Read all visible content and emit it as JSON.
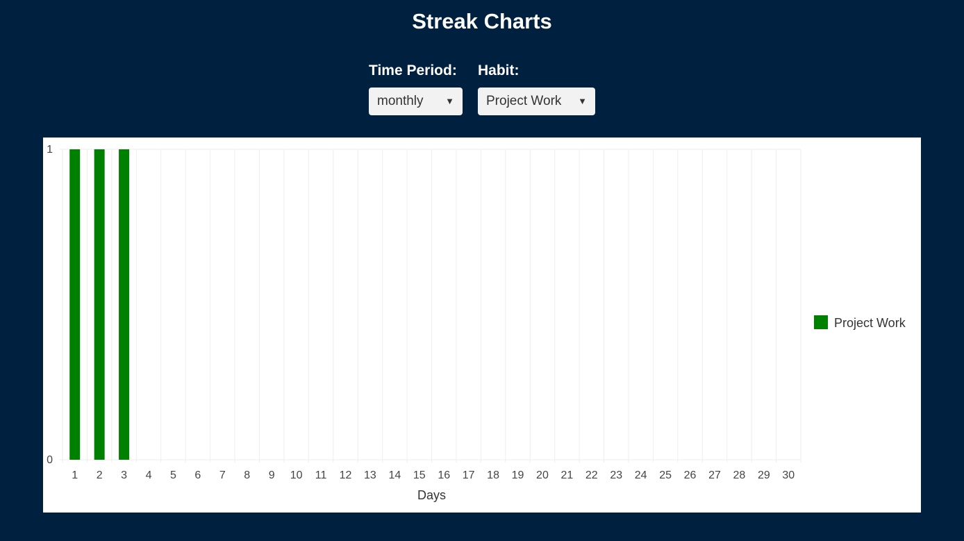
{
  "page": {
    "title": "Streak Charts"
  },
  "filters": {
    "time_period": {
      "label": "Time Period:",
      "selected": "monthly"
    },
    "habit": {
      "label": "Habit:",
      "selected": "Project Work"
    }
  },
  "colors": {
    "background": "#00203f",
    "bar": "#008000",
    "grid": "#eeeeee"
  },
  "chart_data": {
    "type": "bar",
    "title": "",
    "xlabel": "Days",
    "ylabel": "",
    "categories": [
      "1",
      "2",
      "3",
      "4",
      "5",
      "6",
      "7",
      "8",
      "9",
      "10",
      "11",
      "12",
      "13",
      "14",
      "15",
      "16",
      "17",
      "18",
      "19",
      "20",
      "21",
      "22",
      "23",
      "24",
      "25",
      "26",
      "27",
      "28",
      "29",
      "30"
    ],
    "series": [
      {
        "name": "Project Work",
        "color": "#008000",
        "values": [
          1,
          1,
          1,
          0,
          0,
          0,
          0,
          0,
          0,
          0,
          0,
          0,
          0,
          0,
          0,
          0,
          0,
          0,
          0,
          0,
          0,
          0,
          0,
          0,
          0,
          0,
          0,
          0,
          0,
          0
        ]
      }
    ],
    "ylim": [
      0,
      1
    ],
    "yticks": [
      "0",
      "1"
    ],
    "grid": true,
    "legend_position": "right"
  }
}
